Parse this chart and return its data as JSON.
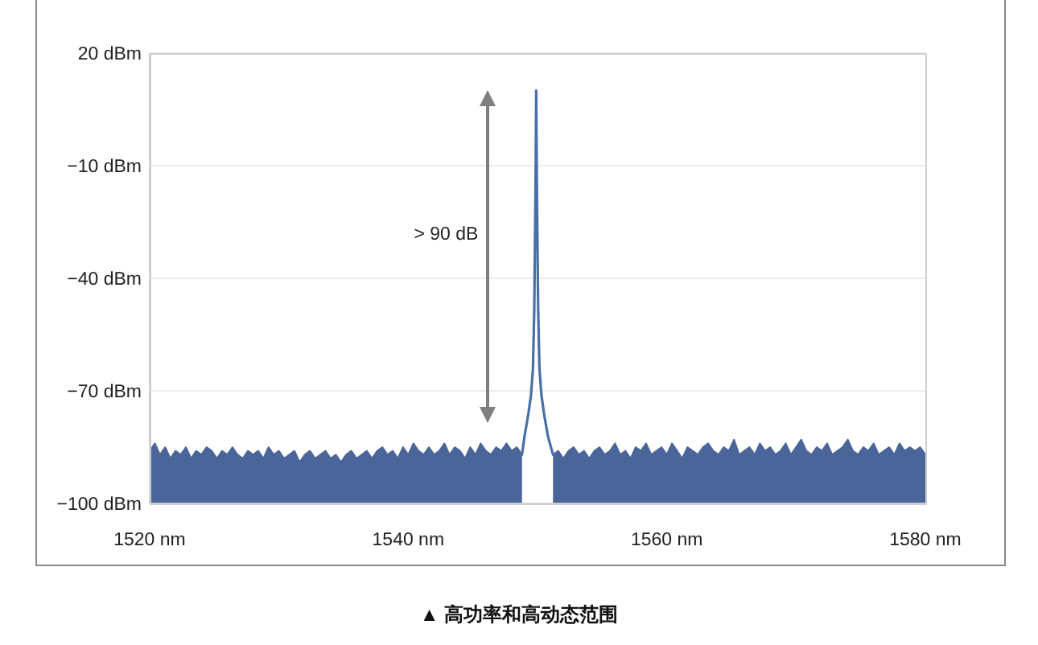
{
  "chart_data": {
    "type": "line",
    "series": [
      {
        "color": "#4a6599",
        "x": [
          1520,
          1520.4,
          1520.8,
          1521.2,
          1521.6,
          1522,
          1522.4,
          1522.8,
          1523.2,
          1523.6,
          1524,
          1524.4,
          1524.8,
          1525.2,
          1525.6,
          1526,
          1526.4,
          1526.8,
          1527.2,
          1527.6,
          1528,
          1528.4,
          1528.8,
          1529.2,
          1529.6,
          1530,
          1530.4,
          1530.8,
          1531.2,
          1531.6,
          1532,
          1532.4,
          1532.8,
          1533.2,
          1533.6,
          1534,
          1534.4,
          1534.8,
          1535.2,
          1535.6,
          1536,
          1536.4,
          1536.8,
          1537.2,
          1537.6,
          1538,
          1538.4,
          1538.8,
          1539.2,
          1539.6,
          1540,
          1540.4,
          1540.8,
          1541.2,
          1541.6,
          1542,
          1542.4,
          1542.8,
          1543.2,
          1543.6,
          1544,
          1544.4,
          1544.8,
          1545.2,
          1545.6,
          1546,
          1546.4,
          1546.8,
          1547.2,
          1547.6,
          1548,
          1548.4,
          1548.8
        ],
        "values": [
          -86,
          -84,
          -87,
          -85,
          -88,
          -86,
          -87,
          -85,
          -88,
          -86,
          -87,
          -85,
          -86,
          -88,
          -86,
          -87,
          -85,
          -87,
          -88,
          -86,
          -87,
          -86,
          -88,
          -85,
          -87,
          -86,
          -88,
          -87,
          -86,
          -89,
          -87,
          -86,
          -88,
          -87,
          -86,
          -88,
          -87,
          -89,
          -87,
          -86,
          -88,
          -87,
          -86,
          -88,
          -86,
          -85,
          -87,
          -86,
          -88,
          -85,
          -87,
          -84,
          -86,
          -87,
          -85,
          -87,
          -86,
          -84,
          -87,
          -85,
          -86,
          -88,
          -85,
          -87,
          -84,
          -86,
          -87,
          -85,
          -86,
          -84,
          -86,
          -85,
          -87
        ],
        "lower": [
          -100,
          -100,
          -100,
          -100,
          -100,
          -100,
          -100,
          -100,
          -100,
          -100,
          -100,
          -100,
          -100,
          -100,
          -100,
          -100,
          -100,
          -100,
          -100,
          -100,
          -100,
          -100,
          -100,
          -100,
          -100,
          -100,
          -100,
          -100,
          -100,
          -100,
          -100,
          -100,
          -100,
          -100,
          -100,
          -100,
          -100,
          -100,
          -100,
          -100,
          -100,
          -100,
          -100,
          -100,
          -100,
          -100,
          -100,
          -100,
          -100,
          -100,
          -100,
          -100,
          -100,
          -100,
          -100,
          -100,
          -100,
          -100,
          -100,
          -100,
          -100,
          -100,
          -100,
          -100,
          -100,
          -100,
          -100,
          -100,
          -100,
          -100,
          -100,
          -100,
          -100
        ],
        "upper": [
          -86,
          -84,
          -87,
          -85,
          -88,
          -86,
          -87,
          -85,
          -88,
          -86,
          -87,
          -85,
          -86,
          -88,
          -86,
          -87,
          -85,
          -87,
          -88,
          -86,
          -87,
          -86,
          -88,
          -85,
          -87,
          -86,
          -88,
          -87,
          -86,
          -89,
          -87,
          -86,
          -88,
          -87,
          -86,
          -88,
          -87,
          -89,
          -87,
          -86,
          -88,
          -87,
          -86,
          -88,
          -86,
          -85,
          -87,
          -86,
          -88,
          -85,
          -87,
          -84,
          -86,
          -87,
          -85,
          -87,
          -86,
          -84,
          -87,
          -85,
          -86,
          -88,
          -85,
          -87,
          -84,
          -86,
          -87,
          -85,
          -86,
          -84,
          -86,
          -85,
          -87
        ]
      },
      {
        "color": "#4a6599",
        "x": [
          1551.2,
          1551.6,
          1552,
          1552.4,
          1552.8,
          1553.2,
          1553.6,
          1554,
          1554.4,
          1554.8,
          1555.2,
          1555.6,
          1556,
          1556.4,
          1556.8,
          1557.2,
          1557.6,
          1558,
          1558.4,
          1558.8,
          1559.2,
          1559.6,
          1560,
          1560.4,
          1560.8,
          1561.2,
          1561.6,
          1562,
          1562.4,
          1562.8,
          1563.2,
          1563.6,
          1564,
          1564.4,
          1564.8,
          1565.2,
          1565.6,
          1566,
          1566.4,
          1566.8,
          1567.2,
          1567.6,
          1568,
          1568.4,
          1568.8,
          1569.2,
          1569.6,
          1570,
          1570.4,
          1570.8,
          1571.2,
          1571.6,
          1572,
          1572.4,
          1572.8,
          1573.2,
          1573.6,
          1574,
          1574.4,
          1574.8,
          1575.2,
          1575.6,
          1576,
          1576.4,
          1576.8,
          1577.2,
          1577.6,
          1578,
          1578.4,
          1578.8,
          1579.2,
          1579.6,
          1580
        ],
        "values": [
          -87,
          -86,
          -88,
          -86,
          -85,
          -87,
          -86,
          -88,
          -86,
          -85,
          -87,
          -86,
          -84,
          -87,
          -86,
          -88,
          -85,
          -86,
          -84,
          -87,
          -86,
          -85,
          -87,
          -84,
          -86,
          -88,
          -85,
          -86,
          -87,
          -85,
          -84,
          -86,
          -87,
          -85,
          -86,
          -83,
          -87,
          -86,
          -85,
          -87,
          -84,
          -86,
          -85,
          -87,
          -86,
          -84,
          -87,
          -85,
          -83,
          -86,
          -87,
          -85,
          -86,
          -84,
          -87,
          -86,
          -85,
          -83,
          -86,
          -87,
          -85,
          -86,
          -84,
          -87,
          -86,
          -85,
          -87,
          -84,
          -86,
          -85,
          -86,
          -85,
          -87
        ],
        "lower": [
          -100,
          -100,
          -100,
          -100,
          -100,
          -100,
          -100,
          -100,
          -100,
          -100,
          -100,
          -100,
          -100,
          -100,
          -100,
          -100,
          -100,
          -100,
          -100,
          -100,
          -100,
          -100,
          -100,
          -100,
          -100,
          -100,
          -100,
          -100,
          -100,
          -100,
          -100,
          -100,
          -100,
          -100,
          -100,
          -100,
          -100,
          -100,
          -100,
          -100,
          -100,
          -100,
          -100,
          -100,
          -100,
          -100,
          -100,
          -100,
          -100,
          -100,
          -100,
          -100,
          -100,
          -100,
          -100,
          -100,
          -100,
          -100,
          -100,
          -100,
          -100,
          -100,
          -100,
          -100,
          -100,
          -100,
          -100,
          -100,
          -100,
          -100,
          -100,
          -100,
          -100
        ],
        "upper": [
          -87,
          -86,
          -88,
          -86,
          -85,
          -87,
          -86,
          -88,
          -86,
          -85,
          -87,
          -86,
          -84,
          -87,
          -86,
          -88,
          -85,
          -86,
          -84,
          -87,
          -86,
          -85,
          -87,
          -84,
          -86,
          -88,
          -85,
          -86,
          -87,
          -85,
          -84,
          -86,
          -87,
          -85,
          -86,
          -83,
          -87,
          -86,
          -85,
          -87,
          -84,
          -86,
          -85,
          -87,
          -86,
          -84,
          -87,
          -85,
          -83,
          -86,
          -87,
          -85,
          -86,
          -84,
          -87,
          -86,
          -85,
          -83,
          -86,
          -87,
          -85,
          -86,
          -84,
          -87,
          -86,
          -85,
          -87,
          -84,
          -86,
          -85,
          -86,
          -85,
          -87
        ]
      },
      {
        "color": "#4a6fa8",
        "x": [
          1548.8,
          1549.0,
          1549.3,
          1549.5,
          1549.65,
          1549.75,
          1549.85,
          1549.9,
          1549.95,
          1550.05,
          1550.15,
          1550.3,
          1550.5,
          1550.8,
          1551.2
        ],
        "values": [
          -87,
          -82,
          -76,
          -71,
          -64,
          -48,
          -15,
          10,
          -15,
          -48,
          -64,
          -71,
          -76,
          -82,
          -87
        ]
      }
    ],
    "xlim": [
      1520,
      1580
    ],
    "xticks": [
      {
        "value": 1520,
        "label": "1520 nm"
      },
      {
        "value": 1540,
        "label": "1540 nm"
      },
      {
        "value": 1560,
        "label": "1560 nm"
      },
      {
        "value": 1580,
        "label": "1580 nm"
      }
    ],
    "ylim": [
      -100,
      20
    ],
    "yticks": [
      {
        "value": -100,
        "label": "−100 dBm"
      },
      {
        "value": -70,
        "label": "−70 dBm"
      },
      {
        "value": -40,
        "label": "−40 dBm"
      },
      {
        "value": -10,
        "label": "−10 dBm"
      },
      {
        "value": 20,
        "label": "20 dBm"
      }
    ],
    "grid": "y",
    "annotations": [
      "> 90 dB",
      "▲ 高功率和高动态范围"
    ]
  }
}
